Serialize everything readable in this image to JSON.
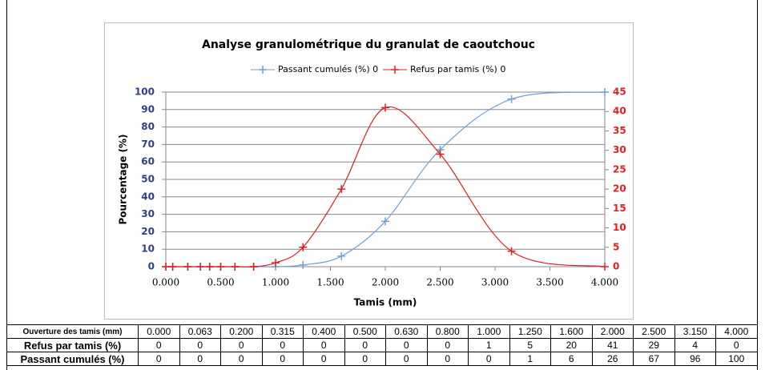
{
  "chart_data": {
    "type": "line",
    "title": "Analyse granulométrique du granulat de caoutchouc",
    "x_label": "Tamis (mm)",
    "y_label": "Pourcentage (%)",
    "x": [
      0,
      0.063,
      0.2,
      0.315,
      0.4,
      0.5,
      0.63,
      0.8,
      1.0,
      1.25,
      1.6,
      2.0,
      2.5,
      3.15,
      4.0
    ],
    "series": [
      {
        "name": "Passant cumulés (%) 0",
        "color": "#6fa0d6",
        "values": [
          0,
          0,
          0,
          0,
          0,
          0,
          0,
          0,
          0,
          1,
          6,
          26,
          67,
          96,
          100
        ]
      },
      {
        "name": "Refus par tamis (%) 0",
        "color": "#e02020",
        "axis": "y2",
        "values": [
          0,
          0,
          0,
          0,
          0,
          0,
          0,
          0,
          1,
          5,
          20,
          41,
          29,
          4,
          0
        ]
      }
    ],
    "xlim": [
      0,
      4
    ],
    "xticks": [
      {
        "value": 0,
        "label": "0.000"
      },
      {
        "value": 0.5,
        "label": "0.500"
      },
      {
        "value": 1,
        "label": "1.000"
      },
      {
        "value": 1.5,
        "label": "1.500"
      },
      {
        "value": 2,
        "label": "2.000"
      },
      {
        "value": 2.5,
        "label": "2.500"
      },
      {
        "value": 3,
        "label": "3.000"
      },
      {
        "value": 3.5,
        "label": "3.500"
      },
      {
        "value": 4,
        "label": "4.000"
      }
    ],
    "ylim": [
      0,
      100
    ],
    "yticks": [
      0,
      10,
      20,
      30,
      40,
      50,
      60,
      70,
      80,
      90,
      100
    ],
    "y2lim": [
      0,
      45
    ],
    "y2ticks": [
      0,
      5,
      10,
      15,
      20,
      25,
      30,
      35,
      40,
      45
    ],
    "grid": true,
    "legend": "top"
  },
  "table": {
    "header": "Ouverture des tamis (mm)",
    "columns": [
      "0.000",
      "0.063",
      "0.200",
      "0.315",
      "0.400",
      "0.500",
      "0.630",
      "0.800",
      "1.000",
      "1.250",
      "1.600",
      "2.000",
      "2.500",
      "3.150",
      "4.000"
    ],
    "rows": [
      {
        "label": "Refus par tamis (%)",
        "cells": [
          0,
          0,
          0,
          0,
          0,
          0,
          0,
          0,
          1,
          5,
          20,
          41,
          29,
          4,
          0
        ]
      },
      {
        "label": "Passant cumulés (%)",
        "cells": [
          0,
          0,
          0,
          0,
          0,
          0,
          0,
          0,
          0,
          1,
          6,
          26,
          67,
          96,
          100
        ]
      }
    ]
  }
}
